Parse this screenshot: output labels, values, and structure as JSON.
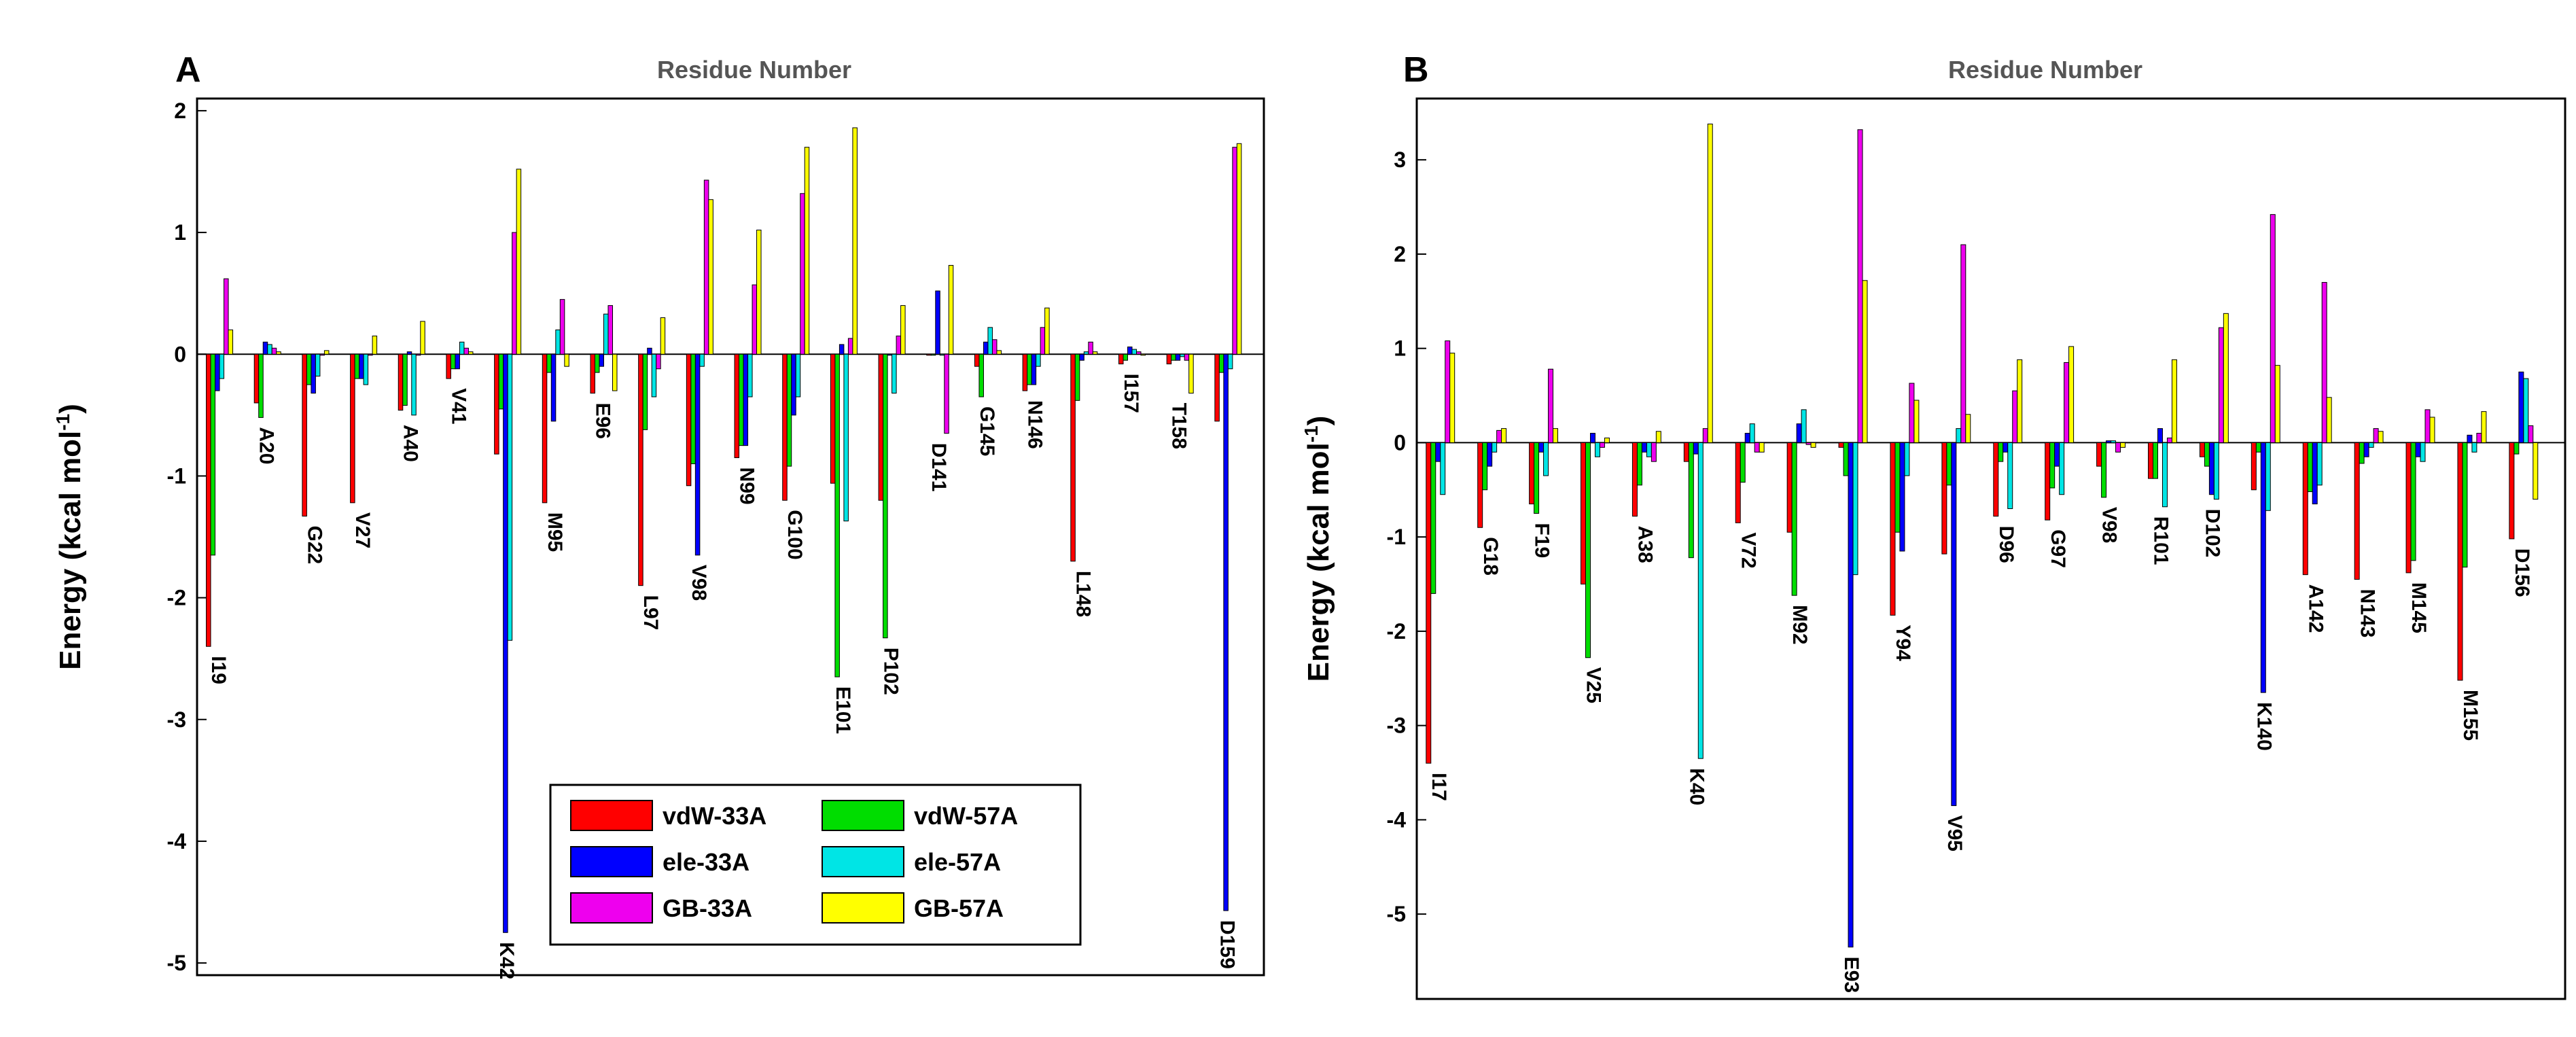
{
  "chart_data": [
    {
      "type": "bar",
      "panel": "A",
      "title": "Residue Number",
      "ylabel": "Energy (kcal mol",
      "ylabel_sup": "-1",
      "ylabel_close": ")",
      "ylim": [
        -5.1,
        2.1
      ],
      "yticks": [
        2,
        1,
        0,
        -1,
        -2,
        -3,
        -4,
        -5
      ],
      "series_names": [
        "vdW-33A",
        "vdW-57A",
        "ele-33A",
        "ele-57A",
        "GB-33A",
        "GB-57A"
      ],
      "categories": [
        "I19",
        "A20",
        "G22",
        "V27",
        "A40",
        "V41",
        "K42",
        "M95",
        "E96",
        "L97",
        "V98",
        "N99",
        "G100",
        "E101",
        "P102",
        "D141",
        "G145",
        "N146",
        "L148",
        "I157",
        "T158",
        "D159"
      ],
      "series": [
        {
          "name": "vdW-33A",
          "values": [
            -2.4,
            -0.4,
            -1.33,
            -1.22,
            -0.46,
            -0.2,
            -0.82,
            -1.22,
            -0.32,
            -1.9,
            -1.08,
            -0.85,
            -1.2,
            -1.06,
            -1.2,
            0.0,
            -0.1,
            -0.3,
            -1.7,
            -0.08,
            -0.08,
            -0.55
          ]
        },
        {
          "name": "vdW-57A",
          "values": [
            -1.65,
            -0.52,
            -0.25,
            -0.2,
            -0.42,
            -0.12,
            -0.45,
            -0.15,
            -0.15,
            -0.62,
            -0.9,
            -0.75,
            -0.92,
            -2.65,
            -2.33,
            0.0,
            -0.35,
            -0.25,
            -0.38,
            -0.05,
            -0.05,
            -0.15
          ]
        },
        {
          "name": "ele-33A",
          "values": [
            -0.3,
            0.1,
            -0.32,
            -0.2,
            0.02,
            -0.12,
            -4.75,
            -0.55,
            -0.1,
            0.05,
            -1.65,
            -0.75,
            -0.5,
            0.08,
            0.0,
            0.52,
            0.1,
            -0.25,
            -0.05,
            0.06,
            -0.05,
            -4.57
          ]
        },
        {
          "name": "ele-57A",
          "values": [
            -0.2,
            0.08,
            -0.18,
            -0.25,
            -0.5,
            0.1,
            -2.35,
            0.2,
            0.33,
            -0.35,
            -0.1,
            -0.35,
            -0.35,
            -1.37,
            -0.32,
            0.0,
            0.22,
            -0.1,
            0.02,
            0.04,
            -0.02,
            -0.12
          ]
        },
        {
          "name": "GB-33A",
          "values": [
            0.62,
            0.05,
            0.0,
            0.0,
            0.0,
            0.05,
            1.0,
            0.45,
            0.4,
            -0.12,
            1.43,
            0.57,
            1.32,
            0.13,
            0.15,
            -0.65,
            0.12,
            0.22,
            0.1,
            0.02,
            -0.05,
            1.7
          ]
        },
        {
          "name": "GB-57A",
          "values": [
            0.2,
            0.02,
            0.03,
            0.15,
            0.27,
            0.02,
            1.52,
            -0.1,
            -0.3,
            0.3,
            1.27,
            1.02,
            1.7,
            1.86,
            0.4,
            0.73,
            0.03,
            0.38,
            0.02,
            0.0,
            -0.32,
            1.73
          ]
        }
      ]
    },
    {
      "type": "bar",
      "panel": "B",
      "title": "Residue Number",
      "ylabel": "Energy (kcal mol",
      "ylabel_sup": "-1",
      "ylabel_close": ")",
      "ylim": [
        -5.9,
        3.65
      ],
      "yticks": [
        3,
        2,
        1,
        0,
        -1,
        -2,
        -3,
        -4,
        -5
      ],
      "series_names": [
        "vdW-33A",
        "vdW-57A",
        "ele-33A",
        "ele-57A",
        "GB-33A",
        "GB-57A"
      ],
      "categories": [
        "I17",
        "G18",
        "F19",
        "V25",
        "A38",
        "K40",
        "V72",
        "M92",
        "E93",
        "Y94",
        "V95",
        "D96",
        "G97",
        "V98",
        "R101",
        "D102",
        "K140",
        "A142",
        "N143",
        "M145",
        "M155",
        "D156"
      ],
      "series": [
        {
          "name": "vdW-33A",
          "values": [
            -3.4,
            -0.9,
            -0.65,
            -1.5,
            -0.78,
            -0.2,
            -0.85,
            -0.95,
            -0.05,
            -1.83,
            -1.18,
            -0.78,
            -0.82,
            -0.25,
            -0.38,
            -0.15,
            -0.5,
            -1.4,
            -1.45,
            -1.38,
            -2.52,
            -1.02
          ]
        },
        {
          "name": "vdW-57A",
          "values": [
            -1.6,
            -0.5,
            -0.75,
            -2.28,
            -0.45,
            -1.22,
            -0.42,
            -1.62,
            -0.35,
            -0.95,
            -0.45,
            -0.2,
            -0.48,
            -0.58,
            -0.38,
            -0.25,
            -0.1,
            -0.52,
            -0.22,
            -1.25,
            -1.32,
            -0.12
          ]
        },
        {
          "name": "ele-33A",
          "values": [
            -0.2,
            -0.25,
            -0.1,
            0.1,
            -0.1,
            -0.12,
            0.1,
            0.2,
            -5.35,
            -1.15,
            -3.85,
            -0.1,
            -0.25,
            0.02,
            0.15,
            -0.55,
            -2.65,
            -0.65,
            -0.15,
            -0.15,
            0.08,
            0.75
          ]
        },
        {
          "name": "ele-57A",
          "values": [
            -0.55,
            -0.1,
            -0.35,
            -0.15,
            -0.15,
            -3.35,
            0.2,
            0.35,
            -1.4,
            -0.35,
            0.15,
            -0.7,
            -0.55,
            0.02,
            -0.68,
            -0.6,
            -0.72,
            -0.45,
            -0.05,
            -0.2,
            -0.1,
            0.68
          ]
        },
        {
          "name": "GB-33A",
          "values": [
            1.08,
            0.13,
            0.78,
            -0.05,
            -0.2,
            0.15,
            -0.1,
            -0.02,
            3.32,
            0.63,
            2.1,
            0.55,
            0.85,
            -0.1,
            0.05,
            1.22,
            2.42,
            1.7,
            0.15,
            0.35,
            0.1,
            0.18
          ]
        },
        {
          "name": "GB-57A",
          "values": [
            0.95,
            0.15,
            0.15,
            0.05,
            0.12,
            3.38,
            -0.1,
            -0.05,
            1.72,
            0.45,
            0.3,
            0.88,
            1.02,
            -0.05,
            0.88,
            1.37,
            0.82,
            0.48,
            0.12,
            0.27,
            0.33,
            -0.6
          ]
        }
      ]
    }
  ],
  "colors": {
    "vdW-33A": "#ff0000",
    "vdW-57A": "#00dd00",
    "ele-33A": "#0000ff",
    "ele-57A": "#00e5e5",
    "GB-33A": "#ee00ee",
    "GB-57A": "#ffff00"
  }
}
